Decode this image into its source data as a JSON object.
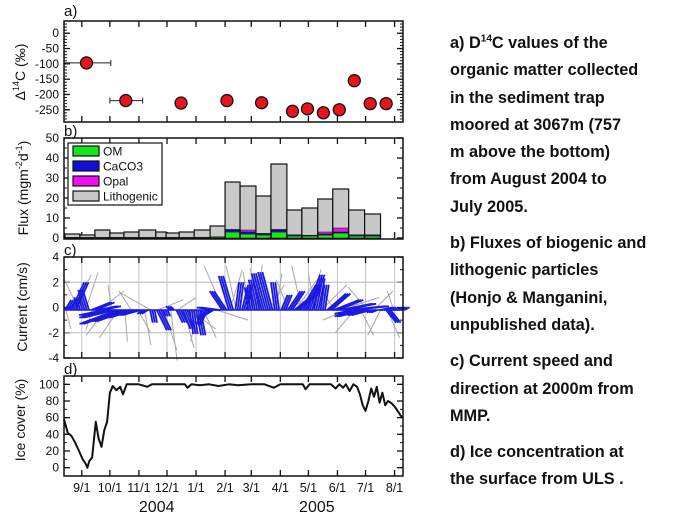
{
  "caption": [
    {
      "lines": [
        "a) D",
        "organic matter collected",
        "in the sediment trap",
        "moored at 3067m (757",
        "m above the bottom)",
        "from August 2004 to",
        "July 2005."
      ],
      "sup": "14",
      "first_rest": "C values of the"
    },
    {
      "lines": [
        "b) Fluxes of biogenic and",
        "lithogenic particles",
        "(Honjo & Manganini,",
        "unpublished data)."
      ]
    },
    {
      "lines": [
        "c) Current speed and",
        "direction at 2000m from",
        "MMP."
      ]
    },
    {
      "lines": [
        "d) Ice concentration at",
        "the surface from ULS ."
      ]
    }
  ],
  "x_axis": {
    "xlim": [
      "2004-08-13",
      "2005-08-10"
    ],
    "ticks": [
      "2004-09-01",
      "2004-10-01",
      "2004-11-01",
      "2004-12-01",
      "2005-01-01",
      "2005-02-01",
      "2005-03-01",
      "2005-04-01",
      "2005-05-01",
      "2005-06-01",
      "2005-07-01",
      "2005-08-01"
    ],
    "tick_labels": [
      "9/1",
      "10/1",
      "11/1",
      "12/1",
      "1/1",
      "2/1",
      "3/1",
      "4/1",
      "5/1",
      "6/1",
      "7/1",
      "8/1"
    ],
    "years": [
      {
        "label": "2004",
        "date": "2004-11-20"
      },
      {
        "label": "2005",
        "date": "2005-05-10"
      }
    ]
  },
  "chart_data": [
    {
      "panel": "a)",
      "type": "scatter",
      "ylabel_prefix": "Δ",
      "ylabel_sup": "14",
      "ylabel_rest": "C (‰)",
      "ylim": [
        -290,
        40
      ],
      "yticks": [
        0,
        -50,
        -100,
        -150,
        -200,
        -250
      ],
      "marker_color": "#e8141b",
      "points": [
        {
          "date": "2004-09-06",
          "value": -97,
          "xerr": [
            "2004-08-13",
            "2004-10-02"
          ]
        },
        {
          "date": "2004-10-18",
          "value": -220,
          "xerr": [
            "2004-10-01",
            "2004-11-05"
          ]
        },
        {
          "date": "2004-12-16",
          "value": -228
        },
        {
          "date": "2005-02-03",
          "value": -220
        },
        {
          "date": "2005-03-12",
          "value": -227
        },
        {
          "date": "2005-04-14",
          "value": -255
        },
        {
          "date": "2005-04-30",
          "value": -247
        },
        {
          "date": "2005-05-17",
          "value": -260
        },
        {
          "date": "2005-06-03",
          "value": -250
        },
        {
          "date": "2005-06-19",
          "value": -155
        },
        {
          "date": "2005-07-06",
          "value": -230
        },
        {
          "date": "2005-07-23",
          "value": -230
        }
      ]
    },
    {
      "panel": "b)",
      "type": "bar",
      "stacked": true,
      "ylabel_prefix": "Flux (mgm",
      "ylabel_sup1": "-2",
      "ylabel_mid": "d",
      "ylabel_sup2": "-1",
      "ylabel_end": ")",
      "ylim": [
        0,
        50
      ],
      "yticks": [
        0,
        10,
        20,
        30,
        40,
        50
      ],
      "legend_position": "top-left",
      "series": [
        {
          "name": "OM",
          "color": "#19e619"
        },
        {
          "name": "CaCO3",
          "color": "#1010d8"
        },
        {
          "name": "Opal",
          "color": "#ee10ee"
        },
        {
          "name": "Lithogenic",
          "color": "#c8c8c8"
        }
      ],
      "bars": [
        {
          "start": "2004-08-14",
          "end": "2004-08-30",
          "OM": 0.2,
          "CaCO3": 0.1,
          "Opal": 0,
          "total": 2
        },
        {
          "start": "2004-08-30",
          "end": "2004-09-15",
          "OM": 0.2,
          "CaCO3": 0.1,
          "Opal": 0,
          "total": 1.5
        },
        {
          "start": "2004-09-15",
          "end": "2004-10-01",
          "OM": 0.2,
          "CaCO3": 0.1,
          "Opal": 0,
          "total": 4
        },
        {
          "start": "2004-10-01",
          "end": "2004-10-16",
          "OM": 0.2,
          "CaCO3": 0.1,
          "Opal": 0,
          "total": 2.5
        },
        {
          "start": "2004-10-16",
          "end": "2004-11-01",
          "OM": 0.2,
          "CaCO3": 0.1,
          "Opal": 0,
          "total": 3
        },
        {
          "start": "2004-11-01",
          "end": "2004-11-19",
          "OM": 0.2,
          "CaCO3": 0.1,
          "Opal": 0,
          "total": 4
        },
        {
          "start": "2004-11-19",
          "end": "2004-11-30",
          "OM": 0.2,
          "CaCO3": 0.1,
          "Opal": 0,
          "total": 3
        },
        {
          "start": "2004-11-30",
          "end": "2004-12-14",
          "OM": 0.2,
          "CaCO3": 0.1,
          "Opal": 0,
          "total": 2.5
        },
        {
          "start": "2004-12-14",
          "end": "2004-12-30",
          "OM": 0.2,
          "CaCO3": 0.1,
          "Opal": 0,
          "total": 3
        },
        {
          "start": "2004-12-30",
          "end": "2005-01-16",
          "OM": 0.3,
          "CaCO3": 0.1,
          "Opal": 0,
          "total": 4
        },
        {
          "start": "2005-01-16",
          "end": "2005-02-01",
          "OM": 0.4,
          "CaCO3": 0.2,
          "Opal": 0,
          "total": 6
        },
        {
          "start": "2005-02-01",
          "end": "2005-02-17",
          "OM": 3,
          "CaCO3": 1,
          "Opal": 0.3,
          "total": 28
        },
        {
          "start": "2005-02-17",
          "end": "2005-03-06",
          "OM": 2,
          "CaCO3": 1,
          "Opal": 1,
          "total": 26
        },
        {
          "start": "2005-03-06",
          "end": "2005-03-22",
          "OM": 1.5,
          "CaCO3": 0.6,
          "Opal": 0.2,
          "total": 21
        },
        {
          "start": "2005-03-22",
          "end": "2005-04-08",
          "OM": 3,
          "CaCO3": 1,
          "Opal": 0.3,
          "total": 37
        },
        {
          "start": "2005-04-08",
          "end": "2005-04-24",
          "OM": 1,
          "CaCO3": 0.5,
          "Opal": 0.1,
          "total": 14
        },
        {
          "start": "2005-04-24",
          "end": "2005-05-11",
          "OM": 1,
          "CaCO3": 0.3,
          "Opal": 0.1,
          "total": 15
        },
        {
          "start": "2005-05-11",
          "end": "2005-05-27",
          "OM": 1.5,
          "CaCO3": 0.5,
          "Opal": 1,
          "total": 19.5
        },
        {
          "start": "2005-05-27",
          "end": "2005-06-13",
          "OM": 2.5,
          "CaCO3": 0.5,
          "Opal": 2,
          "total": 24.5
        },
        {
          "start": "2005-06-13",
          "end": "2005-06-30",
          "OM": 1,
          "CaCO3": 0.5,
          "Opal": 0.1,
          "total": 14
        },
        {
          "start": "2005-06-30",
          "end": "2005-07-17",
          "OM": 1,
          "CaCO3": 0.5,
          "Opal": 0.1,
          "total": 12
        }
      ]
    },
    {
      "panel": "c)",
      "type": "line",
      "style": "stick-vector",
      "ylabel": "Current (cm/s)",
      "ylim": [
        -4,
        4
      ],
      "yticks": [
        4,
        2,
        0,
        -2,
        -4
      ],
      "grid": true,
      "smoothed_color": "#1a1ae0",
      "raw_color": "#a8a8a8",
      "smoothed": [
        [
          "2004-08-14",
          0.5,
          0.8
        ],
        [
          "2004-08-21",
          1.0,
          2.2
        ],
        [
          "2004-08-28",
          -0.3,
          1.0
        ],
        [
          "2004-09-04",
          -0.5,
          1.6
        ],
        [
          "2004-09-11",
          1.5,
          0.6
        ],
        [
          "2004-09-18",
          1.5,
          0.3
        ],
        [
          "2004-09-25",
          -2.0,
          -0.4
        ],
        [
          "2004-10-02",
          -2.5,
          -0.6
        ],
        [
          "2004-10-09",
          -3.0,
          -1.1
        ],
        [
          "2004-10-16",
          -2.5,
          -0.9
        ],
        [
          "2004-10-23",
          -2.0,
          -0.6
        ],
        [
          "2004-10-30",
          -1.5,
          -0.4
        ],
        [
          "2004-11-06",
          -0.5,
          -0.3
        ],
        [
          "2004-11-13",
          0.2,
          -1.0
        ],
        [
          "2004-11-20",
          0.8,
          -1.6
        ],
        [
          "2004-11-27",
          0.2,
          -0.5
        ],
        [
          "2004-12-04",
          -0.3,
          0.3
        ],
        [
          "2004-12-11",
          0.5,
          -1.0
        ],
        [
          "2004-12-18",
          0.6,
          -1.5
        ],
        [
          "2004-12-25",
          0.3,
          -1.9
        ],
        [
          "2005-01-01",
          0.4,
          -2.0
        ],
        [
          "2005-01-08",
          -0.5,
          -1.2
        ],
        [
          "2005-01-15",
          -1.0,
          -0.6
        ],
        [
          "2005-01-22",
          -1.5,
          0.2
        ],
        [
          "2005-01-29",
          -1.0,
          1.5
        ],
        [
          "2005-02-05",
          -0.8,
          2.7
        ],
        [
          "2005-02-12",
          0.3,
          2.2
        ],
        [
          "2005-02-19",
          0.5,
          2.0
        ],
        [
          "2005-02-26",
          -0.3,
          1.8
        ],
        [
          "2005-03-05",
          -0.5,
          2.4
        ],
        [
          "2005-03-12",
          -0.8,
          2.9
        ],
        [
          "2005-03-19",
          -0.8,
          3.0
        ],
        [
          "2005-03-26",
          -0.3,
          2.2
        ],
        [
          "2005-04-02",
          0.5,
          1.2
        ],
        [
          "2005-04-09",
          1.0,
          1.5
        ],
        [
          "2005-04-16",
          1.5,
          1.2
        ],
        [
          "2005-04-23",
          1.2,
          2.0
        ],
        [
          "2005-04-30",
          1.0,
          2.8
        ],
        [
          "2005-05-07",
          0.5,
          2.5
        ],
        [
          "2005-05-14",
          0.3,
          2.0
        ],
        [
          "2005-05-21",
          1.5,
          1.3
        ],
        [
          "2005-05-28",
          2.0,
          0.8
        ],
        [
          "2005-06-04",
          2.5,
          0.5
        ],
        [
          "2005-06-11",
          3.0,
          0.3
        ],
        [
          "2005-06-18",
          -1.5,
          -0.3
        ],
        [
          "2005-06-25",
          -2.0,
          -0.5
        ],
        [
          "2005-07-02",
          -1.5,
          -0.4
        ],
        [
          "2005-07-09",
          -0.5,
          -0.2
        ],
        [
          "2005-07-16",
          1.0,
          0.2
        ],
        [
          "2005-07-23",
          0.8,
          -1.0
        ],
        [
          "2005-07-30",
          1.0,
          0.2
        ],
        [
          "2005-08-06",
          0.3,
          0.1
        ]
      ],
      "raw": [
        [
          "2004-08-15",
          0.4,
          -1.5
        ],
        [
          "2004-08-22",
          1.5,
          2.8
        ],
        [
          "2004-08-29",
          -1.2,
          2.5
        ],
        [
          "2004-09-05",
          1.0,
          3.0
        ],
        [
          "2004-09-12",
          -0.5,
          -1.6
        ],
        [
          "2004-09-19",
          2.0,
          1.5
        ],
        [
          "2004-09-26",
          -1.5,
          -2.0
        ],
        [
          "2004-10-03",
          -0.3,
          2.0
        ],
        [
          "2004-10-10",
          -1.5,
          -2.2
        ],
        [
          "2004-10-17",
          0.2,
          -2.5
        ],
        [
          "2004-10-24",
          -1.0,
          1.5
        ],
        [
          "2004-10-31",
          1.0,
          -1.8
        ],
        [
          "2004-11-07",
          0.5,
          -2.8
        ],
        [
          "2004-11-14",
          -2.5,
          1.4
        ],
        [
          "2004-11-21",
          2.0,
          0.8
        ],
        [
          "2004-11-28",
          1.0,
          -3.2
        ],
        [
          "2004-12-05",
          0.5,
          -4.0
        ],
        [
          "2004-12-12",
          1.5,
          1.0
        ],
        [
          "2004-12-19",
          0.8,
          -3.0
        ],
        [
          "2004-12-26",
          2.0,
          -1.5
        ],
        [
          "2005-01-02",
          -0.5,
          -2.5
        ],
        [
          "2005-01-09",
          1.0,
          -2.2
        ],
        [
          "2005-01-16",
          -0.8,
          -1.0
        ],
        [
          "2005-01-23",
          2.5,
          -0.8
        ],
        [
          "2005-01-30",
          -1.5,
          3.5
        ],
        [
          "2005-02-06",
          1.0,
          3.2
        ],
        [
          "2005-02-13",
          -0.8,
          3.5
        ],
        [
          "2005-02-20",
          1.0,
          2.5
        ],
        [
          "2005-02-27",
          -0.5,
          3.0
        ],
        [
          "2005-03-06",
          0.5,
          3.6
        ],
        [
          "2005-03-13",
          -1.0,
          3.3
        ],
        [
          "2005-03-20",
          1.2,
          2.0
        ],
        [
          "2005-03-27",
          0.5,
          2.9
        ],
        [
          "2005-04-03",
          2.5,
          1.0
        ],
        [
          "2005-04-10",
          -1.0,
          2.4
        ],
        [
          "2005-04-17",
          1.8,
          2.5
        ],
        [
          "2005-04-24",
          -0.8,
          3.5
        ],
        [
          "2005-05-01",
          1.0,
          3.2
        ],
        [
          "2005-05-08",
          -0.5,
          2.8
        ],
        [
          "2005-05-15",
          2.0,
          2.0
        ],
        [
          "2005-05-22",
          2.5,
          0.5
        ],
        [
          "2005-05-29",
          -1.0,
          1.5
        ],
        [
          "2005-06-05",
          3.0,
          1.0
        ],
        [
          "2005-06-12",
          -2.0,
          -0.8
        ],
        [
          "2005-06-19",
          -1.5,
          -1.8
        ],
        [
          "2005-06-26",
          1.0,
          -2.0
        ],
        [
          "2005-07-03",
          -1.5,
          1.8
        ],
        [
          "2005-07-10",
          1.5,
          1.5
        ],
        [
          "2005-07-17",
          -1.0,
          -2.0
        ],
        [
          "2005-07-24",
          1.0,
          -2.2
        ],
        [
          "2005-07-31",
          -0.5,
          1.5
        ]
      ]
    },
    {
      "panel": "d)",
      "type": "line",
      "ylabel": "Ice cover (%)",
      "ylim": [
        -10,
        110
      ],
      "yticks": [
        100,
        80,
        60,
        40,
        20,
        0
      ],
      "color": "#111111",
      "points": [
        [
          "2004-08-13",
          58
        ],
        [
          "2004-08-17",
          42
        ],
        [
          "2004-08-21",
          38
        ],
        [
          "2004-08-25",
          30
        ],
        [
          "2004-08-29",
          20
        ],
        [
          "2004-09-02",
          10
        ],
        [
          "2004-09-05",
          5
        ],
        [
          "2004-09-07",
          0
        ],
        [
          "2004-09-09",
          8
        ],
        [
          "2004-09-12",
          12
        ],
        [
          "2004-09-16",
          55
        ],
        [
          "2004-09-19",
          35
        ],
        [
          "2004-09-22",
          25
        ],
        [
          "2004-09-25",
          45
        ],
        [
          "2004-09-28",
          55
        ],
        [
          "2004-10-01",
          90
        ],
        [
          "2004-10-04",
          98
        ],
        [
          "2004-10-08",
          93
        ],
        [
          "2004-10-12",
          97
        ],
        [
          "2004-10-15",
          88
        ],
        [
          "2004-10-19",
          100
        ],
        [
          "2004-11-01",
          100
        ],
        [
          "2004-11-10",
          97
        ],
        [
          "2004-11-15",
          100
        ],
        [
          "2004-12-20",
          100
        ],
        [
          "2004-12-23",
          96
        ],
        [
          "2004-12-27",
          100
        ],
        [
          "2005-01-05",
          99
        ],
        [
          "2005-01-15",
          100
        ],
        [
          "2005-01-25",
          98
        ],
        [
          "2005-02-05",
          100
        ],
        [
          "2005-02-15",
          99
        ],
        [
          "2005-03-01",
          100
        ],
        [
          "2005-03-15",
          100
        ],
        [
          "2005-03-25",
          96
        ],
        [
          "2005-04-01",
          100
        ],
        [
          "2005-04-25",
          100
        ],
        [
          "2005-04-28",
          94
        ],
        [
          "2005-05-02",
          100
        ],
        [
          "2005-05-25",
          100
        ],
        [
          "2005-05-30",
          95
        ],
        [
          "2005-06-03",
          100
        ],
        [
          "2005-06-07",
          96
        ],
        [
          "2005-06-10",
          100
        ],
        [
          "2005-06-14",
          92
        ],
        [
          "2005-06-18",
          100
        ],
        [
          "2005-06-22",
          97
        ],
        [
          "2005-06-25",
          88
        ],
        [
          "2005-06-28",
          75
        ],
        [
          "2005-07-01",
          68
        ],
        [
          "2005-07-04",
          80
        ],
        [
          "2005-07-07",
          95
        ],
        [
          "2005-07-10",
          85
        ],
        [
          "2005-07-13",
          97
        ],
        [
          "2005-07-16",
          78
        ],
        [
          "2005-07-19",
          90
        ],
        [
          "2005-07-22",
          75
        ],
        [
          "2005-07-25",
          80
        ],
        [
          "2005-07-29",
          77
        ],
        [
          "2005-08-02",
          72
        ],
        [
          "2005-08-06",
          65
        ],
        [
          "2005-08-09",
          60
        ]
      ]
    }
  ]
}
